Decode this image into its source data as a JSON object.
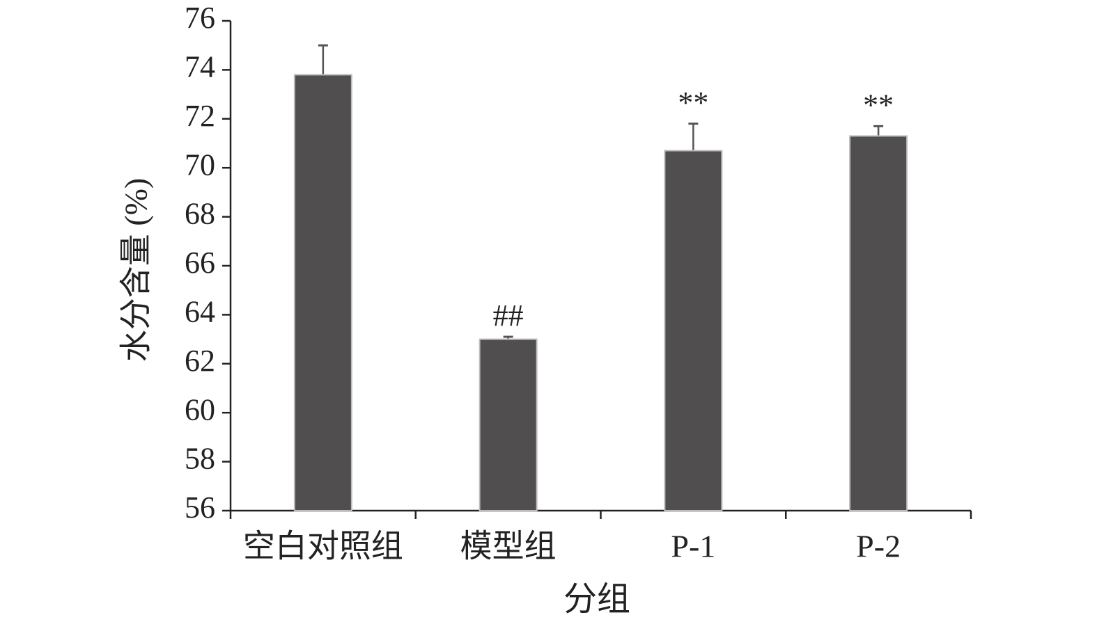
{
  "chart_data": {
    "type": "bar",
    "x_label": "分组",
    "y_label": "水分含量 (%)",
    "categories": [
      "空白对照组",
      "模型组",
      "P-1",
      "P-2"
    ],
    "values": [
      73.8,
      63.0,
      70.7,
      71.3
    ],
    "errors": [
      1.2,
      0.1,
      1.1,
      0.4
    ],
    "annotations": [
      null,
      "##",
      "**",
      "**"
    ],
    "color": "#504e4f",
    "ylim": [
      56,
      76
    ],
    "yticks": [
      56,
      58,
      60,
      62,
      64,
      66,
      68,
      70,
      72,
      74,
      76
    ],
    "grid": false
  }
}
